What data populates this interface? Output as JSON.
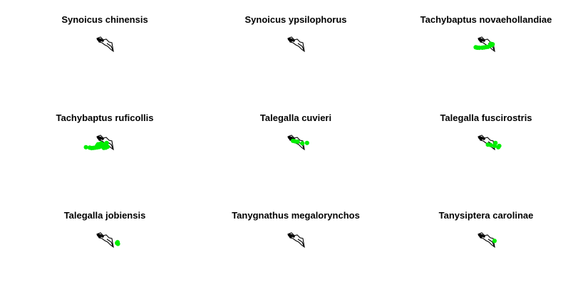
{
  "chart_data": {
    "type": "scatter",
    "layout": "3x3 small multiples",
    "point_color": "#00ee00",
    "outline_color": "#000000",
    "axes": "hidden",
    "grid": false,
    "outline_shape_y_range": [
      0,
      1
    ],
    "panels": [
      {
        "title": "Synoicus chinensis",
        "points": []
      },
      {
        "title": "Synoicus ypsilophorus",
        "points": []
      },
      {
        "title": "Tachybaptus novaehollandiae",
        "points": [
          [
            -0.55,
            0.3
          ],
          [
            -0.5,
            0.27
          ],
          [
            -0.45,
            0.25
          ],
          [
            -0.35,
            0.24
          ],
          [
            -0.2,
            0.25
          ],
          [
            -0.1,
            0.28
          ],
          [
            0.0,
            0.32
          ],
          [
            0.1,
            0.35
          ],
          [
            0.2,
            0.45
          ],
          [
            0.3,
            0.55
          ],
          [
            0.35,
            0.65
          ],
          [
            0.25,
            0.7
          ]
        ]
      },
      {
        "title": "Tachybaptus ruficollis",
        "points": [
          [
            -1.0,
            0.1
          ],
          [
            -0.8,
            0.05
          ],
          [
            -0.7,
            0.0
          ],
          [
            -0.6,
            0.02
          ],
          [
            -0.5,
            0.05
          ],
          [
            -0.4,
            0.08
          ],
          [
            -0.3,
            0.12
          ],
          [
            -0.2,
            0.2
          ],
          [
            -0.1,
            0.3
          ],
          [
            0.0,
            0.45
          ],
          [
            0.1,
            0.6
          ],
          [
            -0.2,
            0.55
          ],
          [
            -0.35,
            0.45
          ],
          [
            -0.4,
            0.3
          ],
          [
            0.15,
            0.15
          ],
          [
            0.05,
            0.05
          ],
          [
            -0.05,
            0.02
          ]
        ]
      },
      {
        "title": "Talegalla cuvieri",
        "points": [
          [
            -0.15,
            0.85
          ],
          [
            -0.05,
            0.8
          ],
          [
            0.1,
            0.75
          ],
          [
            0.35,
            0.55
          ],
          [
            0.6,
            0.6
          ]
        ]
      },
      {
        "title": "Talegalla fuscirostris",
        "points": [
          [
            0.1,
            0.4
          ],
          [
            0.25,
            0.35
          ],
          [
            0.45,
            0.25
          ],
          [
            0.65,
            0.1
          ],
          [
            0.7,
            0.25
          ],
          [
            0.5,
            0.6
          ]
        ]
      },
      {
        "title": "Talegalla jobiensis",
        "points": [
          [
            0.65,
            0.3
          ],
          [
            0.7,
            0.2
          ],
          [
            0.68,
            0.4
          ]
        ]
      },
      {
        "title": "Tanygnathus megalorynchos",
        "points": []
      },
      {
        "title": "Tanysiptera carolinae",
        "points": [
          [
            0.45,
            0.55
          ]
        ]
      }
    ]
  }
}
